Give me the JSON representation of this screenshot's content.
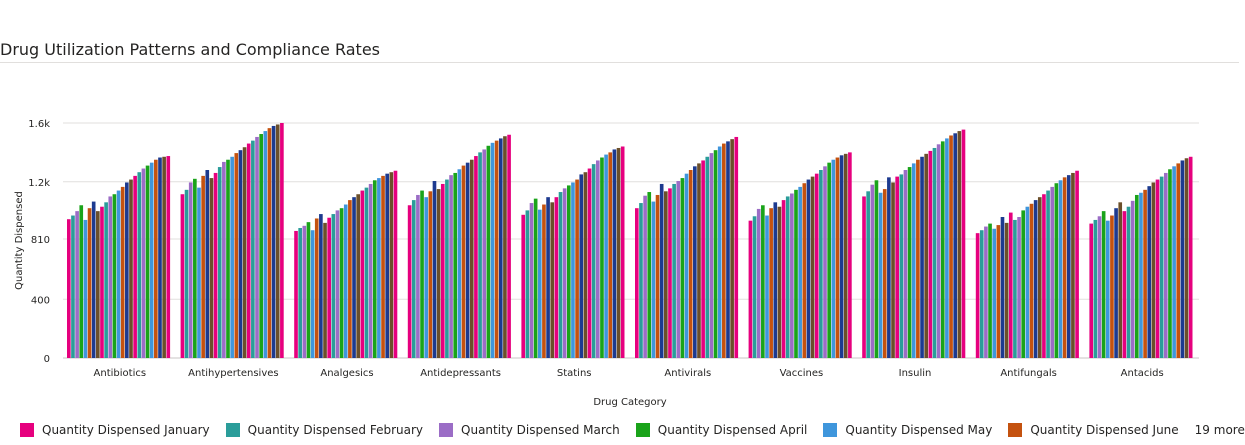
{
  "chart_data": {
    "type": "bar",
    "title": "Drug Utilization Patterns and Compliance Rates",
    "xlabel": "Drug Category",
    "ylabel": "Quantity Dispensed",
    "ylim": [
      0,
      1600
    ],
    "yticks": [
      {
        "value": 0,
        "label": "0"
      },
      {
        "value": 400,
        "label": "400"
      },
      {
        "value": 810,
        "label": "810"
      },
      {
        "value": 1200,
        "label": "1.2k"
      },
      {
        "value": 1600,
        "label": "1.6k"
      }
    ],
    "grid": true,
    "legend_position": "bottom-left",
    "categories": [
      "Antibiotics",
      "Antihypertensives",
      "Analgesics",
      "Antidepressants",
      "Statins",
      "Antivirals",
      "Vaccines",
      "Insulin",
      "Antifungals",
      "Antacids"
    ],
    "series_count": 25,
    "palette": [
      "#e6007e",
      "#2a9d9a",
      "#9b6dc6",
      "#1aa31a",
      "#3f96dc",
      "#c4520f",
      "#1d3a8f",
      "#6b4f2a"
    ],
    "series_values": [
      [
        945,
        1115,
        865,
        1040,
        975,
        1020,
        935,
        1100,
        850,
        915
      ],
      [
        970,
        1145,
        885,
        1075,
        1005,
        1055,
        965,
        1135,
        870,
        940
      ],
      [
        1000,
        1195,
        900,
        1110,
        1055,
        1105,
        1015,
        1180,
        895,
        965
      ],
      [
        1040,
        1220,
        925,
        1140,
        1085,
        1130,
        1040,
        1210,
        915,
        1000
      ],
      [
        940,
        1160,
        870,
        1095,
        1010,
        1065,
        970,
        1125,
        880,
        935
      ],
      [
        1020,
        1240,
        950,
        1135,
        1045,
        1110,
        1020,
        1150,
        905,
        970
      ],
      [
        1065,
        1280,
        980,
        1205,
        1095,
        1185,
        1060,
        1230,
        960,
        1020
      ],
      [
        1000,
        1225,
        920,
        1150,
        1060,
        1135,
        1030,
        1195,
        920,
        1060
      ],
      [
        1030,
        1260,
        955,
        1185,
        1095,
        1155,
        1075,
        1235,
        990,
        1000
      ],
      [
        1060,
        1300,
        980,
        1215,
        1130,
        1185,
        1100,
        1250,
        940,
        1030
      ],
      [
        1100,
        1335,
        1005,
        1245,
        1155,
        1205,
        1120,
        1280,
        960,
        1070
      ],
      [
        1115,
        1350,
        1020,
        1260,
        1175,
        1225,
        1145,
        1300,
        1005,
        1110
      ],
      [
        1140,
        1370,
        1045,
        1285,
        1195,
        1255,
        1165,
        1325,
        1030,
        1125
      ],
      [
        1165,
        1395,
        1075,
        1310,
        1215,
        1280,
        1190,
        1350,
        1050,
        1145
      ],
      [
        1195,
        1415,
        1095,
        1330,
        1250,
        1305,
        1215,
        1370,
        1075,
        1170
      ],
      [
        1215,
        1435,
        1115,
        1350,
        1265,
        1325,
        1235,
        1390,
        1095,
        1195
      ],
      [
        1240,
        1460,
        1140,
        1375,
        1290,
        1345,
        1255,
        1410,
        1115,
        1215
      ],
      [
        1265,
        1480,
        1160,
        1400,
        1320,
        1370,
        1280,
        1430,
        1140,
        1235
      ],
      [
        1290,
        1505,
        1185,
        1420,
        1345,
        1395,
        1305,
        1455,
        1165,
        1260
      ],
      [
        1310,
        1525,
        1210,
        1445,
        1365,
        1415,
        1330,
        1475,
        1190,
        1285
      ],
      [
        1330,
        1545,
        1225,
        1465,
        1385,
        1440,
        1350,
        1495,
        1210,
        1305
      ],
      [
        1350,
        1565,
        1240,
        1480,
        1400,
        1460,
        1365,
        1515,
        1230,
        1325
      ],
      [
        1365,
        1580,
        1255,
        1495,
        1420,
        1475,
        1380,
        1530,
        1245,
        1345
      ],
      [
        1370,
        1590,
        1265,
        1510,
        1430,
        1490,
        1390,
        1545,
        1260,
        1360
      ],
      [
        1375,
        1600,
        1275,
        1520,
        1440,
        1505,
        1400,
        1555,
        1275,
        1370
      ]
    ]
  },
  "legend": {
    "items": [
      {
        "label": "Quantity Dispensed January",
        "color": "#e6007e"
      },
      {
        "label": "Quantity Dispensed February",
        "color": "#2a9d9a"
      },
      {
        "label": "Quantity Dispensed March",
        "color": "#9b6dc6"
      },
      {
        "label": "Quantity Dispensed April",
        "color": "#1aa31a"
      },
      {
        "label": "Quantity Dispensed May",
        "color": "#3f96dc"
      },
      {
        "label": "Quantity Dispensed June",
        "color": "#c4520f"
      }
    ],
    "more_label": "19 more"
  }
}
